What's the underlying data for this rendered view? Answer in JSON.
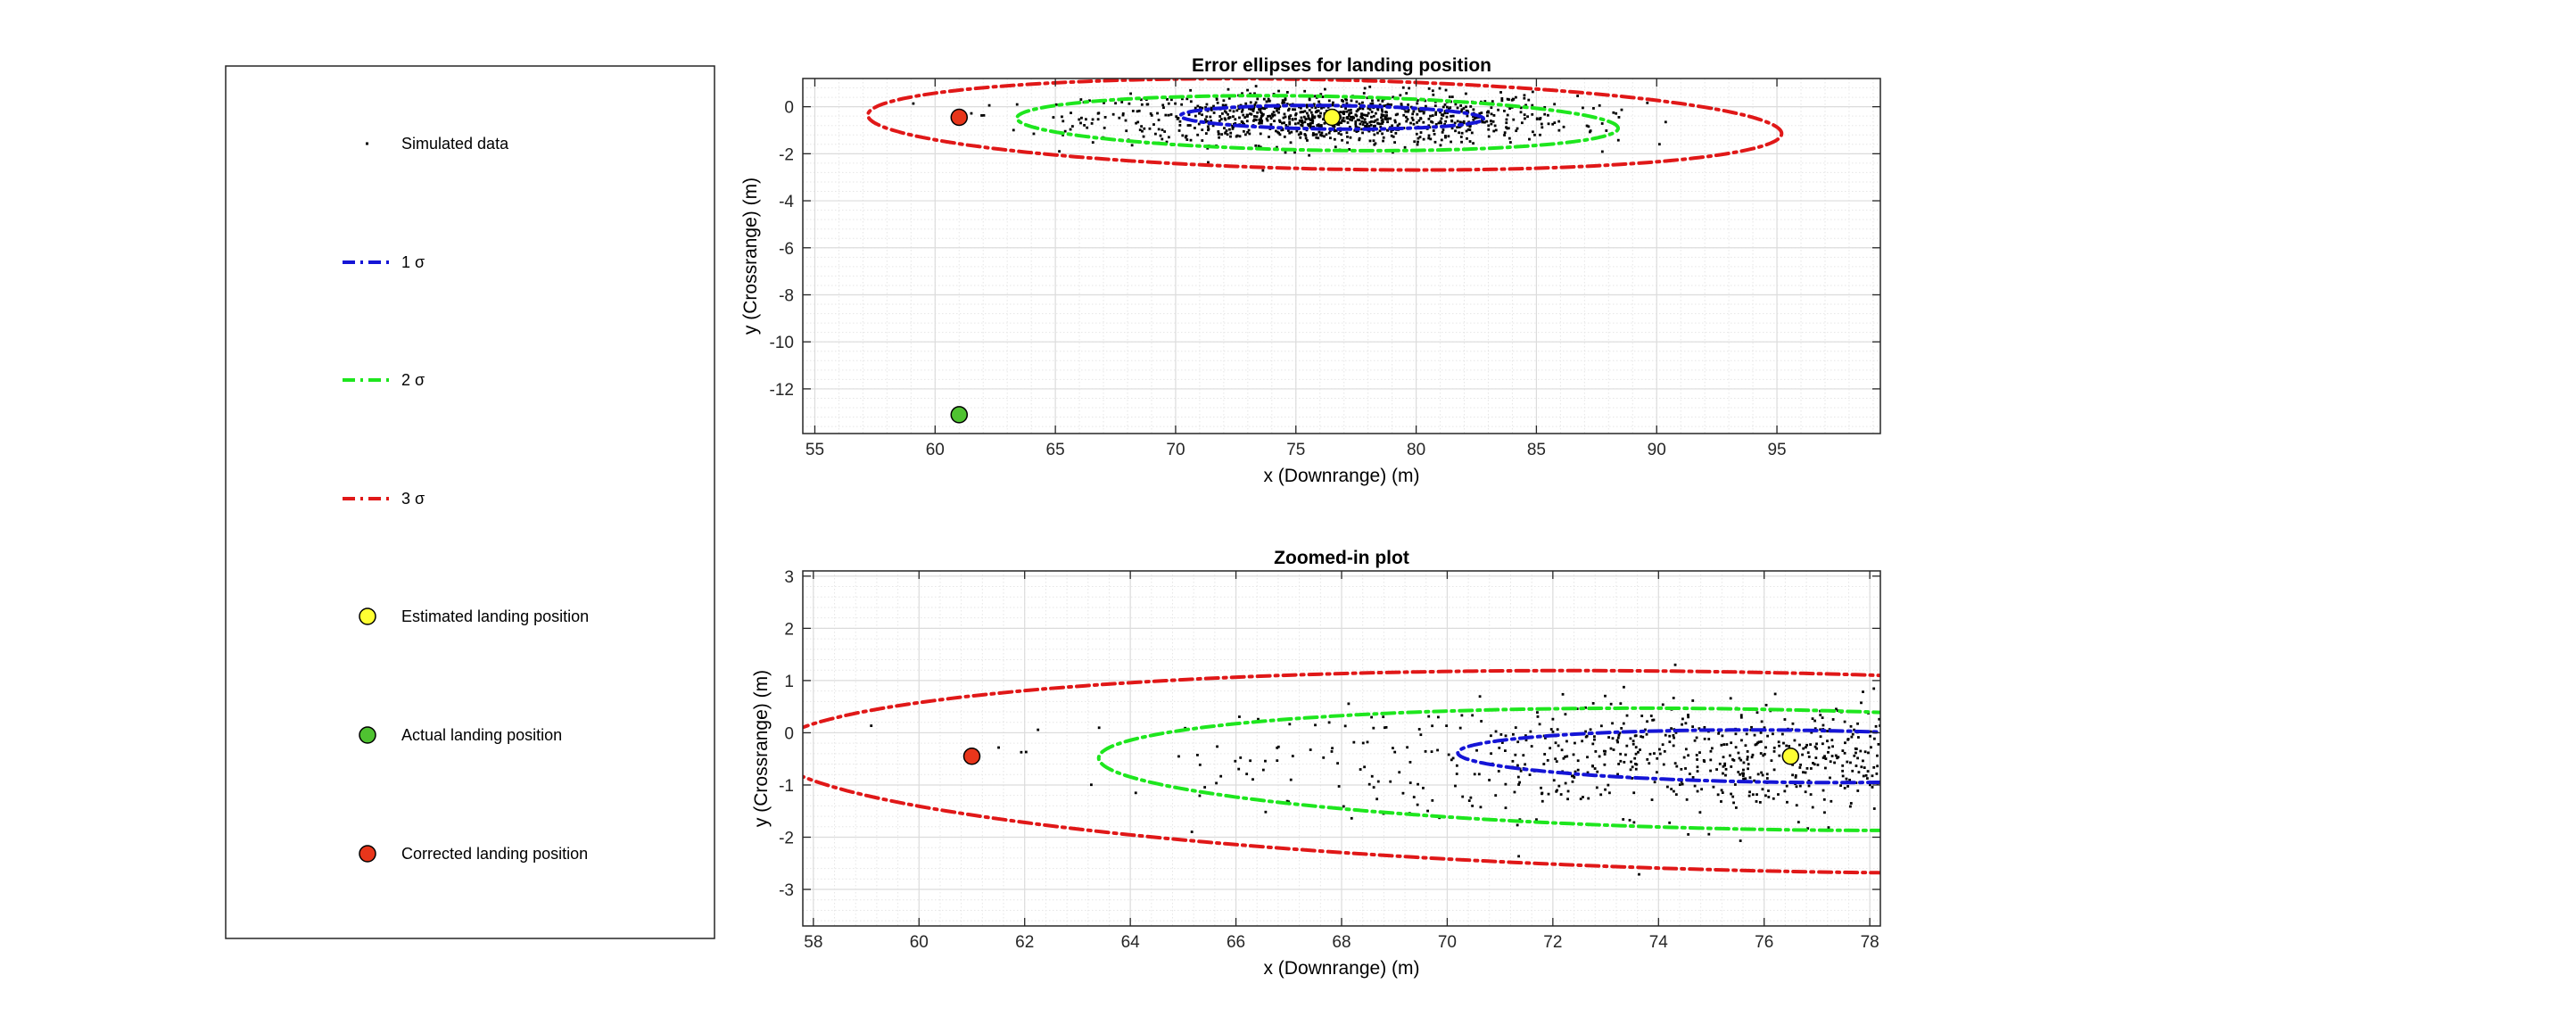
{
  "legend": {
    "items": [
      {
        "label": "Simulated data",
        "kind": "dots",
        "color": "#000000"
      },
      {
        "label": "1 σ",
        "kind": "line",
        "color": "#1515d6"
      },
      {
        "label": "2 σ",
        "kind": "line",
        "color": "#1ee61e"
      },
      {
        "label": "3 σ",
        "kind": "line",
        "color": "#e01818"
      },
      {
        "label": "Estimated landing position",
        "kind": "marker",
        "color": "#ffff33"
      },
      {
        "label": "Actual landing position",
        "kind": "marker",
        "color": "#4fc231"
      },
      {
        "label": "Corrected landing position",
        "kind": "marker",
        "color": "#e8361b"
      }
    ]
  },
  "chart_data": [
    {
      "type": "scatter",
      "title": "Error ellipses for landing position",
      "xlabel": "x (Downrange) (m)",
      "ylabel": "y (Crossrange) (m)",
      "xlim": [
        54.5,
        99.3
      ],
      "ylim": [
        -13.9,
        1.2
      ],
      "xticks": [
        55,
        60,
        65,
        70,
        75,
        80,
        85,
        90,
        95
      ],
      "yticks": [
        0,
        -2,
        -4,
        -6,
        -8,
        -10,
        -12
      ],
      "grid": true,
      "legend_placement": "left, outside",
      "ellipses": [
        {
          "name": "1 σ",
          "center": [
            76.5,
            -0.45
          ],
          "semi_x": 6.3,
          "semi_y": 0.5,
          "tilt_deg": -0.6,
          "color": "#1515d6"
        },
        {
          "name": "2 σ",
          "center": [
            75.9,
            -0.7
          ],
          "semi_x": 12.5,
          "semi_y": 1.15,
          "tilt_deg": -1.0,
          "color": "#1ee61e"
        },
        {
          "name": "3 σ",
          "center": [
            76.2,
            -0.75
          ],
          "semi_x": 19.0,
          "semi_y": 1.9,
          "tilt_deg": -1.2,
          "color": "#e01818"
        }
      ],
      "simulated_data": {
        "center": [
          76.5,
          -0.5
        ],
        "sd_x": 5.0,
        "sd_y": 0.55,
        "count": 1000
      },
      "points": [
        {
          "name": "Estimated landing position",
          "x": 76.5,
          "y": -0.45,
          "color": "#ffff33"
        },
        {
          "name": "Actual landing position",
          "x": 61.0,
          "y": -13.1,
          "color": "#4fc231"
        },
        {
          "name": "Corrected landing position",
          "x": 61.0,
          "y": -0.45,
          "color": "#e8361b"
        }
      ]
    },
    {
      "type": "scatter",
      "title": "Zoomed-in plot",
      "xlabel": "x (Downrange) (m)",
      "ylabel": "y (Crossrange) (m)",
      "xlim": [
        57.8,
        78.2
      ],
      "ylim": [
        -3.7,
        3.1
      ],
      "xticks": [
        58,
        60,
        62,
        64,
        66,
        68,
        70,
        72,
        74,
        76,
        78
      ],
      "yticks": [
        3,
        2,
        1,
        0,
        -1,
        -2,
        -3
      ],
      "grid": true,
      "ellipses": [
        {
          "name": "1 σ",
          "center": [
            76.5,
            -0.45
          ],
          "semi_x": 6.3,
          "semi_y": 0.5,
          "tilt_deg": -0.6,
          "color": "#1515d6"
        },
        {
          "name": "2 σ",
          "center": [
            75.9,
            -0.7
          ],
          "semi_x": 12.5,
          "semi_y": 1.15,
          "tilt_deg": -1.0,
          "color": "#1ee61e"
        },
        {
          "name": "3 σ",
          "center": [
            76.2,
            -0.75
          ],
          "semi_x": 19.0,
          "semi_y": 1.9,
          "tilt_deg": -1.2,
          "color": "#e01818"
        }
      ],
      "simulated_data": {
        "center": [
          76.5,
          -0.5
        ],
        "sd_x": 5.0,
        "sd_y": 0.55,
        "count": 1000
      },
      "points": [
        {
          "name": "Estimated landing position",
          "x": 76.5,
          "y": -0.45,
          "color": "#ffff33"
        },
        {
          "name": "Corrected landing position",
          "x": 61.0,
          "y": -0.45,
          "color": "#e8361b"
        }
      ]
    }
  ]
}
